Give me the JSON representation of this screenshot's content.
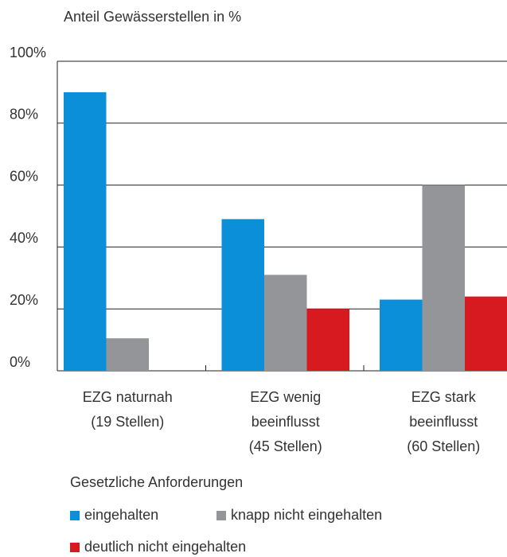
{
  "chart_data": {
    "type": "bar",
    "y_axis_label": "Anteil Gewässerstellen in %",
    "categories": [
      [
        "EZG naturnah",
        "(19 Stellen)"
      ],
      [
        "EZG wenig",
        "beeinflusst",
        "(45 Stellen)"
      ],
      [
        "EZG stark",
        "beeinflusst",
        "(60 Stellen)"
      ]
    ],
    "series": [
      {
        "name": "eingehalten",
        "color": "#0a8fd8",
        "values": [
          90,
          49,
          23
        ]
      },
      {
        "name": "knapp nicht eingehalten",
        "color": "#939598",
        "values": [
          10.5,
          31,
          60
        ]
      },
      {
        "name": "deutlich nicht eingehalten",
        "color": "#d71920",
        "values": [
          0,
          20,
          24
        ]
      }
    ],
    "legend_title": "Gesetzliche Anforderungen",
    "ylim": [
      0,
      100
    ],
    "yticks": [
      {
        "value": 0,
        "label": "0%"
      },
      {
        "value": 20,
        "label": "20%"
      },
      {
        "value": 40,
        "label": "40%"
      },
      {
        "value": 60,
        "label": "60%"
      },
      {
        "value": 80,
        "label": "80%"
      },
      {
        "value": 100,
        "label": "100%"
      }
    ],
    "grid": true
  }
}
